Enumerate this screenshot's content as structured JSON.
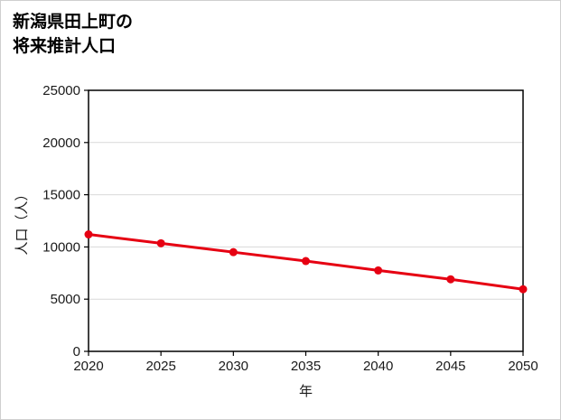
{
  "page": {
    "background": "#ffffff",
    "border_color": "#cfcfcf"
  },
  "title": {
    "line1": "新潟県田上町の",
    "line2": "将来推計人口"
  },
  "chart_data": {
    "type": "line",
    "title": "新潟県田上町の将来推計人口",
    "xlabel": "年",
    "ylabel": "人口（人）",
    "x": [
      2020,
      2025,
      2030,
      2035,
      2040,
      2045,
      2050
    ],
    "xticks": [
      2020,
      2025,
      2030,
      2035,
      2040,
      2045,
      2050
    ],
    "yticks": [
      0,
      5000,
      10000,
      15000,
      20000,
      25000
    ],
    "ylim": [
      0,
      25000
    ],
    "series": [
      {
        "name": "将来推計人口",
        "color": "#e60012",
        "values": [
          11200,
          10350,
          9500,
          8650,
          7750,
          6900,
          5950
        ]
      }
    ],
    "grid": "horizontal",
    "gridline_color": "#d9d9d9",
    "axis_color": "#000000",
    "tick_label_color": "#1a1a1a",
    "marker": "circle",
    "legend": "none"
  }
}
